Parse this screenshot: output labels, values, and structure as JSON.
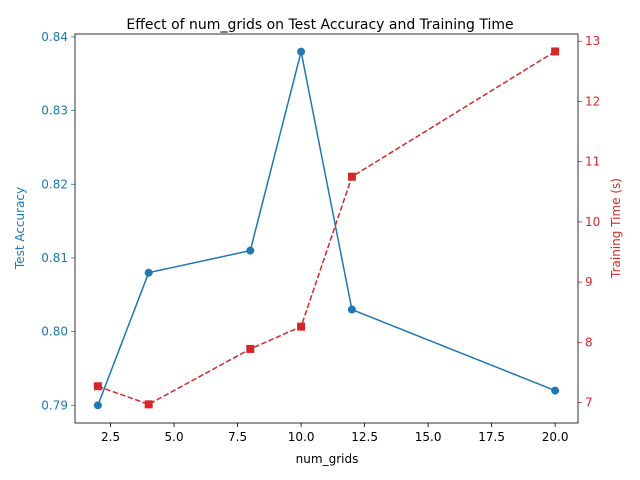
{
  "chart_data": {
    "type": "line",
    "title": "Effect of num_grids on Test Accuracy and Training Time",
    "xlabel": "num_grids",
    "xlim": [
      1.1,
      20.9
    ],
    "xticks": [
      "2.5",
      "5.0",
      "7.5",
      "10.0",
      "12.5",
      "15.0",
      "17.5",
      "20.0"
    ],
    "x": [
      2,
      4,
      8,
      10,
      12,
      20
    ],
    "grid": false,
    "legend": "none",
    "series": [
      {
        "axis": "left",
        "ylabel": "Test Accuracy",
        "color": "#1f77b4",
        "marker": "circle",
        "linestyle": "solid",
        "ylim": [
          0.7876,
          0.8404
        ],
        "yticks": [
          "0.79",
          "0.80",
          "0.81",
          "0.82",
          "0.83",
          "0.84"
        ],
        "values": [
          0.79,
          0.808,
          0.811,
          0.838,
          0.803,
          0.792
        ]
      },
      {
        "axis": "right",
        "ylabel": "Training Time (s)",
        "color": "#d62728",
        "marker": "square",
        "linestyle": "dashed",
        "ylim": [
          6.66,
          13.12
        ],
        "yticks": [
          "7",
          "8",
          "9",
          "10",
          "11",
          "12",
          "13"
        ],
        "values": [
          7.27,
          6.97,
          7.89,
          8.26,
          10.75,
          12.83
        ]
      }
    ]
  }
}
